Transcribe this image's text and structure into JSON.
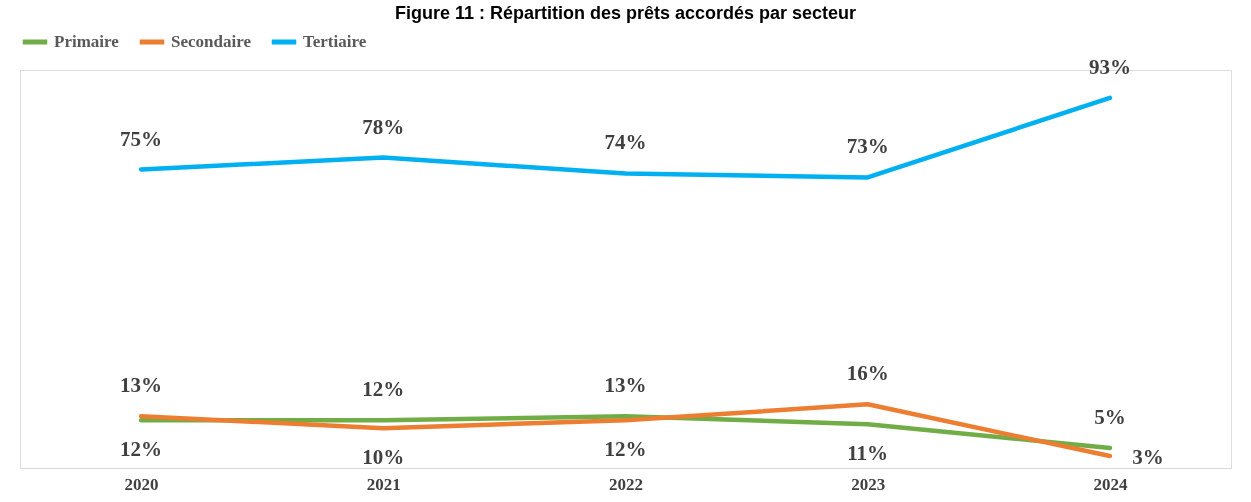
{
  "chart_data": {
    "type": "line",
    "title": "Figure 11 : Répartition des prêts accordés par secteur",
    "categories": [
      "2020",
      "2021",
      "2022",
      "2023",
      "2024"
    ],
    "series": [
      {
        "name": "Primaire",
        "color": "#70ad47",
        "values": [
          12,
          12,
          13,
          11,
          5
        ],
        "value_labels": [
          "12%",
          "12%",
          "13%",
          "11%",
          "5%"
        ]
      },
      {
        "name": "Secondaire",
        "color": "#ed7d31",
        "values": [
          13,
          10,
          12,
          16,
          3
        ],
        "value_labels": [
          "13%",
          "10%",
          "12%",
          "16%",
          "3%"
        ]
      },
      {
        "name": "Tertiaire",
        "color": "#00b0f0",
        "values": [
          75,
          78,
          74,
          73,
          93
        ],
        "value_labels": [
          "75%",
          "78%",
          "74%",
          "73%",
          "93%"
        ]
      }
    ],
    "legend": "top",
    "grid": false,
    "marker": "none",
    "line_style": "solid"
  }
}
